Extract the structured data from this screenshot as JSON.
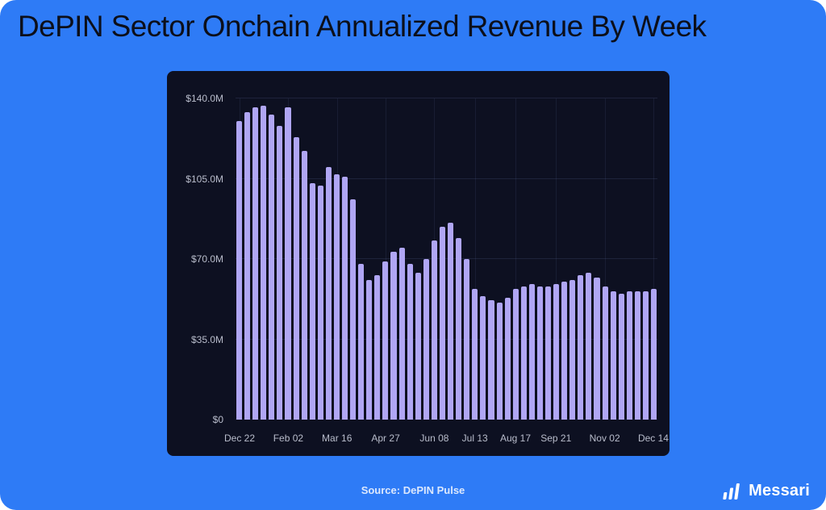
{
  "page": {
    "title": "DePIN Sector Onchain Annualized Revenue By Week",
    "source_label": "Source: DePIN Pulse",
    "brand": "Messari",
    "colors": {
      "background": "#2e7bf6",
      "panel": "#0d1021",
      "bar": "#b0a6f4",
      "title_text": "#0c0f1a",
      "axis_text": "#b9bdcc"
    }
  },
  "chart_data": {
    "type": "bar",
    "title": "DePIN Sector Onchain Annualized Revenue By Week",
    "values_unit": "USD millions, annualized",
    "values": [
      130,
      134,
      136,
      137,
      133,
      128,
      136,
      123,
      117,
      103,
      102,
      110,
      107,
      106,
      96,
      68,
      61,
      63,
      69,
      73,
      75,
      68,
      64,
      70,
      78,
      84,
      86,
      79,
      70,
      57,
      54,
      52,
      51,
      53,
      57,
      58,
      59,
      58,
      58,
      59,
      60,
      61,
      63,
      64,
      62,
      58,
      56,
      55,
      56,
      56,
      56,
      57
    ],
    "x_tick_labels": [
      "Dec 22",
      "Feb 02",
      "Mar 16",
      "Apr 27",
      "Jun 08",
      "Jul 13",
      "Aug 17",
      "Sep 21",
      "Nov 02",
      "Dec 14"
    ],
    "x_tick_indices": [
      0,
      6,
      12,
      18,
      24,
      29,
      34,
      39,
      45,
      51
    ],
    "y_tick_labels": [
      "$0",
      "$35.0M",
      "$70.0M",
      "$105.0M",
      "$140.0M"
    ],
    "ylim": [
      0,
      140
    ],
    "grid": true,
    "legend": false,
    "xlabel": "",
    "ylabel": ""
  }
}
